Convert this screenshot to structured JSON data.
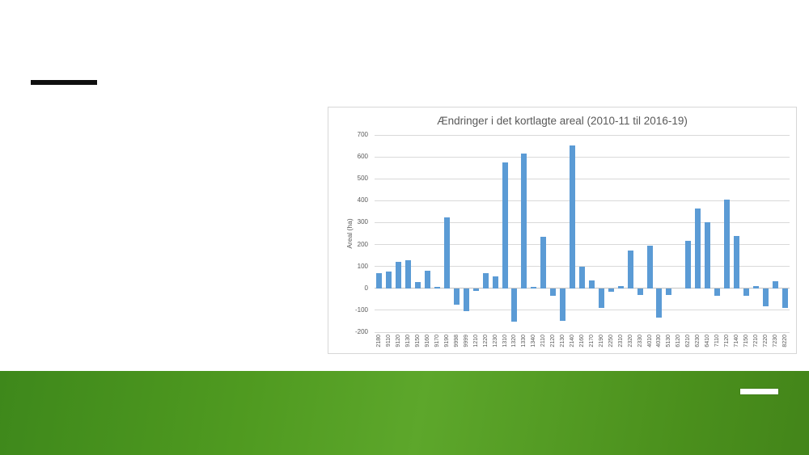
{
  "slide": {
    "kind": "presentation-slide"
  },
  "chart_data": {
    "type": "bar",
    "title": "Ændringer i det kortlagte areal (2010-11 til 2016-19)",
    "xlabel": "",
    "ylabel": "Areal (ha)",
    "ylim": [
      -200,
      700
    ],
    "ytick_step": 100,
    "grid": true,
    "legend": "none",
    "categories": [
      "2180",
      "9110",
      "9120",
      "9130",
      "9150",
      "9160",
      "9170",
      "9190",
      "9998",
      "9999",
      "1210",
      "1220",
      "1230",
      "1310",
      "1320",
      "1330",
      "1340",
      "2110",
      "2120",
      "2130",
      "2140",
      "2160",
      "2170",
      "2190",
      "2250",
      "2310",
      "2320",
      "2330",
      "4010",
      "4030",
      "5130",
      "6120",
      "6210",
      "6230",
      "6410",
      "7110",
      "7120",
      "7140",
      "7150",
      "7210",
      "7220",
      "7230",
      "8220"
    ],
    "values": [
      70,
      78,
      120,
      127,
      27,
      80,
      5,
      322,
      -75,
      -105,
      -13,
      71,
      54,
      576,
      -153,
      616,
      5,
      237,
      -33,
      -148,
      652,
      100,
      36,
      -88,
      -16,
      9,
      172,
      -30,
      193,
      -135,
      -30,
      0,
      215,
      365,
      300,
      -35,
      405,
      240,
      -33,
      11,
      -82,
      34,
      -90
    ]
  },
  "colors": {
    "bar": "#5b9bd5",
    "grid": "#d9d9d9",
    "zero_line": "#c3c3c3",
    "axis_text": "#595959",
    "title_text": "#595959",
    "chart_border": "#d7d7d7",
    "header_rule": "#0f0f0f",
    "footer_dash": "#ffffff",
    "band_gradient": [
      "#3e881b",
      "#4f9a20",
      "#5da72b",
      "#4a8f1c",
      "#43851a"
    ]
  }
}
